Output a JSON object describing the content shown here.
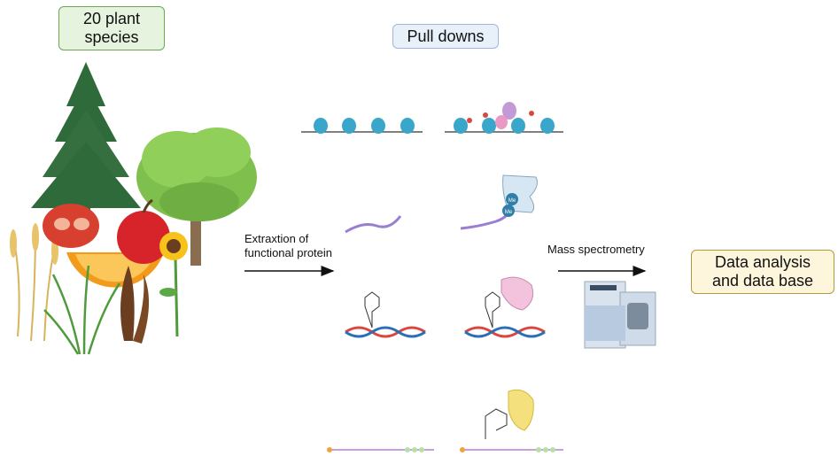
{
  "species_box": {
    "line1": "20 plant",
    "line2": "species"
  },
  "pulldowns_box": {
    "label": "Pull downs"
  },
  "extraction_label": {
    "line1": "Extraxtion of",
    "line2": "functional protein"
  },
  "mass_spec_label": {
    "label": "Mass spectrometry"
  },
  "analysis_box": {
    "line1": "Data analysis",
    "line2": "and data base"
  },
  "methyl_marks": [
    "Me",
    "Me"
  ],
  "colors": {
    "green_box": "#e6f3df",
    "blue_box": "#e8f0fa",
    "yellow_box": "#fdf6dc",
    "nucleosome": "#3aa6c9",
    "rna": "#9a7fd1",
    "dna_red": "#d9473f",
    "dna_blue": "#2c6fb5"
  }
}
